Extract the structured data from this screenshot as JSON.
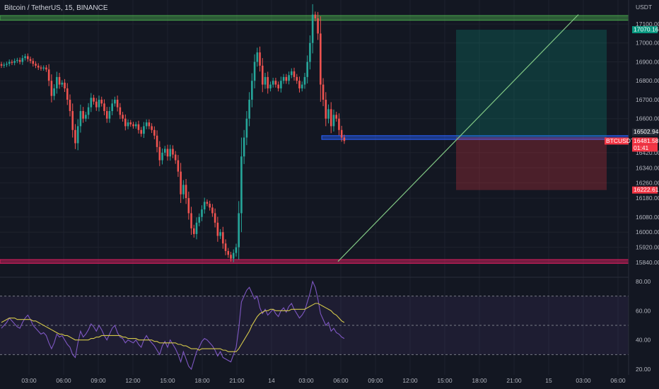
{
  "header": {
    "symbol_title": "Bitcoin / TetherUS, 15, BINANCE"
  },
  "price_axis": {
    "unit_label": "USDT",
    "ticks": [
      "17100.00",
      "17000.00",
      "16900.00",
      "16800.00",
      "16700.00",
      "16600.00",
      "16420.00",
      "16340.00",
      "16260.00",
      "16180.00",
      "16080.00",
      "16000.00",
      "15920.00",
      "15840.00"
    ],
    "tags": [
      {
        "text": "17070.16",
        "color": "#089981",
        "value": 17070.16
      },
      {
        "text": "16502.94",
        "color": "#2a2e39",
        "value": 16502.94
      },
      {
        "text": "BTCUSDT",
        "color": "#f23645",
        "value": 16481.58
      },
      {
        "text": "16481.58",
        "color": "#f23645",
        "value": 16481.58
      },
      {
        "text": "01:41",
        "color": "#f23645",
        "value": 16481.58
      },
      {
        "text": "16222.61",
        "color": "#f23645",
        "value": 16222.61
      }
    ]
  },
  "rsi_axis": {
    "ticks": [
      "80.00",
      "60.00",
      "40.00",
      "20.00"
    ]
  },
  "time_axis": {
    "labels": [
      "03:00",
      "06:00",
      "09:00",
      "12:00",
      "15:00",
      "18:00",
      "21:00",
      "14",
      "03:00",
      "06:00",
      "09:00",
      "12:00",
      "15:00",
      "18:00",
      "21:00",
      "15",
      "03:00",
      "06:00"
    ]
  },
  "colors": {
    "up": "#26a69a",
    "down": "#ef5350",
    "resistance_zone": "#4caf50",
    "support_zone": "#e91e63",
    "mid_zone": "#2962ff",
    "trendline": "#81c784",
    "rsi": "#7e57c2",
    "rsi_ma": "#d4c84a"
  },
  "chart_data": {
    "type": "candlestick",
    "symbol": "BTCUSDT",
    "timeframe": "15",
    "exchange": "BINANCE",
    "close_series": [
      16880,
      16885,
      16890,
      16900,
      16895,
      16905,
      16910,
      16900,
      16920,
      16930,
      16915,
      16905,
      16890,
      16880,
      16870,
      16865,
      16870,
      16860,
      16800,
      16720,
      16760,
      16820,
      16780,
      16790,
      16760,
      16700,
      16640,
      16540,
      16470,
      16560,
      16640,
      16600,
      16620,
      16660,
      16710,
      16690,
      16660,
      16700,
      16680,
      16640,
      16600,
      16640,
      16680,
      16700,
      16660,
      16620,
      16600,
      16560,
      16580,
      16570,
      16560,
      16570,
      16540,
      16520,
      16560,
      16580,
      16560,
      16540,
      16510,
      16450,
      16380,
      16420,
      16440,
      16400,
      16440,
      16410,
      16380,
      16320,
      16200,
      16250,
      16180,
      16100,
      16020,
      15990,
      16050,
      16080,
      16120,
      16160,
      16150,
      16130,
      16100,
      16050,
      15980,
      16000,
      15940,
      15900,
      15880,
      15860,
      15890,
      15920,
      16100,
      16400,
      16500,
      16600,
      16700,
      16800,
      16900,
      16950,
      16880,
      16780,
      16820,
      16760,
      16780,
      16800,
      16780,
      16760,
      16800,
      16820,
      16800,
      16830,
      16850,
      16820,
      16800,
      16760,
      16780,
      16820,
      16900,
      17000,
      17150,
      17130,
      17050,
      16780,
      16700,
      16600,
      16650,
      16560,
      16620,
      16600,
      16540,
      16500,
      16482
    ],
    "resistance_zone": [
      17120,
      17145
    ],
    "support_zone": [
      15835,
      15855
    ],
    "mid_zone": [
      16490,
      16510
    ],
    "position": {
      "entry": 16502.94,
      "target": 17070.16,
      "stop": 16222.61
    },
    "trendline": {
      "from": 15845,
      "to": 17150
    },
    "rsi": [
      48,
      50,
      52,
      55,
      53,
      51,
      49,
      48,
      52,
      55,
      57,
      54,
      50,
      48,
      46,
      44,
      45,
      43,
      38,
      34,
      38,
      44,
      42,
      43,
      40,
      37,
      35,
      30,
      28,
      38,
      46,
      42,
      44,
      47,
      51,
      49,
      46,
      50,
      47,
      43,
      40,
      44,
      48,
      50,
      45,
      42,
      41,
      38,
      40,
      39,
      38,
      40,
      37,
      35,
      40,
      43,
      40,
      38,
      36,
      33,
      30,
      36,
      39,
      35,
      40,
      37,
      34,
      30,
      25,
      32,
      27,
      22,
      20,
      26,
      32,
      35,
      39,
      41,
      40,
      38,
      36,
      33,
      29,
      32,
      28,
      27,
      26,
      25,
      30,
      35,
      48,
      66,
      70,
      74,
      76,
      72,
      68,
      70,
      62,
      58,
      61,
      57,
      59,
      61,
      58,
      56,
      60,
      62,
      59,
      63,
      65,
      61,
      58,
      55,
      57,
      60,
      66,
      72,
      80,
      76,
      68,
      58,
      54,
      50,
      52,
      46,
      48,
      45,
      44,
      42,
      41
    ],
    "rsi_ma": [
      52,
      53,
      54,
      55,
      55,
      55,
      54,
      54,
      54,
      54,
      54,
      54,
      53,
      53,
      52,
      51,
      50,
      49,
      48,
      47,
      46,
      45,
      44,
      44,
      43,
      43,
      42,
      41,
      40,
      40,
      40,
      40,
      40,
      40,
      41,
      41,
      42,
      42,
      43,
      43,
      43,
      43,
      43,
      43,
      43,
      43,
      42,
      42,
      41,
      41,
      41,
      41,
      40,
      40,
      40,
      40,
      40,
      40,
      39,
      39,
      38,
      38,
      38,
      38,
      38,
      38,
      38,
      37,
      37,
      36,
      36,
      35,
      34,
      34,
      34,
      33,
      34,
      34,
      34,
      34,
      34,
      34,
      34,
      34,
      33,
      33,
      32,
      32,
      32,
      32,
      34,
      37,
      40,
      43,
      46,
      50,
      53,
      56,
      58,
      59,
      60,
      60,
      61,
      61,
      60,
      60,
      60,
      60,
      60,
      60,
      61,
      61,
      61,
      61,
      61,
      61,
      62,
      63,
      64,
      65,
      65,
      64,
      63,
      62,
      61,
      60,
      58,
      57,
      55,
      53,
      52
    ],
    "rsi_bands": [
      70,
      50,
      30
    ],
    "time_axis_labels": [
      "03:00",
      "06:00",
      "09:00",
      "12:00",
      "15:00",
      "18:00",
      "21:00",
      "14",
      "03:00",
      "06:00",
      "09:00",
      "12:00",
      "15:00",
      "18:00",
      "21:00",
      "15",
      "03:00",
      "06:00"
    ]
  }
}
